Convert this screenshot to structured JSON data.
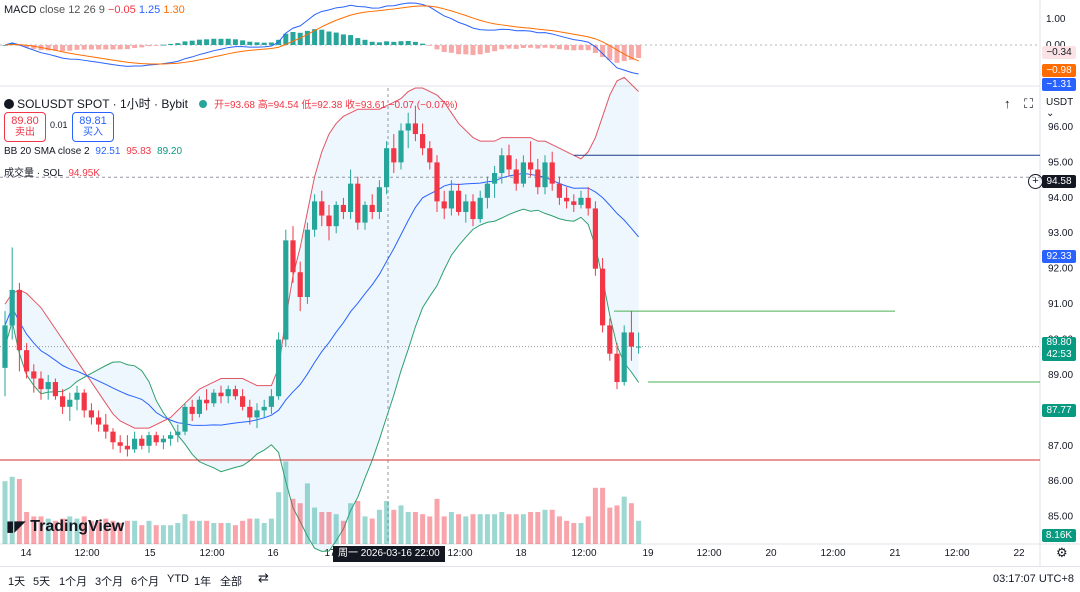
{
  "macd": {
    "label": "MACD",
    "params": "close 12 26 9",
    "v1": "−0.05",
    "v2": "1.25",
    "v3": "1.30",
    "ticks": [
      "1.00",
      "0.00"
    ]
  },
  "symbol": {
    "name": "SOLUSDT SPOT · 1小时 · Bybit",
    "ohlc": "开=93.68 高=94.54 低=92.38 收=93.61 −0.07 (−0.07%)",
    "currency": "USDT"
  },
  "order": {
    "sell_price": "89.80",
    "sell_label": "卖出",
    "spread": "0.01",
    "buy_price": "89.81",
    "buy_label": "买入"
  },
  "bb": {
    "label": "BB 20 SMA close 2",
    "v1": "92.51",
    "v2": "95.83",
    "v3": "89.20"
  },
  "volume": {
    "label": "成交量 · SOL",
    "value": "94.95K",
    "tag": "8.16K"
  },
  "price_tags": {
    "macd_a": "−0.34",
    "macd_b": "−0.98",
    "macd_c": "−1.31",
    "crosshair": "94.58",
    "bb_mid": "92.33",
    "last": "89.80",
    "countdown": "42:53",
    "bb_low": "87.77"
  },
  "x_axis": {
    "highlight": "周一 2026-03-16  22:00"
  },
  "ranges": [
    "1天",
    "5天",
    "1个月",
    "3个月",
    "6个月",
    "YTD",
    "1年",
    "全部"
  ],
  "clock": "03:17:07 UTC+8",
  "logo": "TradingView",
  "colors": {
    "up": "#26a69a",
    "down": "#f23645",
    "bb_upper": "#e25563",
    "bb_lower": "#2e9f6b",
    "bb_basis": "#2962ff",
    "macd": "#2962ff",
    "signal": "#ff6d00"
  },
  "chart_data": {
    "type": "candlestick",
    "y_ticks": [
      "96.00",
      "95.00",
      "94.00",
      "93.00",
      "92.00",
      "91.00",
      "90.00",
      "89.00",
      "88.00",
      "87.00",
      "86.00",
      "85.00"
    ],
    "x_ticks": [
      "14",
      "12:00",
      "15",
      "12:00",
      "16",
      "17",
      "12:00",
      "18",
      "12:00",
      "19",
      "12:00",
      "20",
      "12:00",
      "21",
      "12:00",
      "22"
    ],
    "ylim": [
      84.2,
      97.1
    ],
    "horizontal_lines": [
      95.2,
      94.58,
      90.8,
      88.8,
      86.6
    ],
    "candles": [
      [
        89.2,
        90.8,
        88.4,
        90.4
      ],
      [
        90.4,
        92.6,
        90,
        91.4
      ],
      [
        91.4,
        91.6,
        89.1,
        89.7
      ],
      [
        89.7,
        89.9,
        88.9,
        89.1
      ],
      [
        89.1,
        89.3,
        88.5,
        88.9
      ],
      [
        88.9,
        89.1,
        88.3,
        88.6
      ],
      [
        88.6,
        89,
        88.3,
        88.8
      ],
      [
        88.8,
        88.9,
        88.3,
        88.4
      ],
      [
        88.4,
        88.6,
        87.9,
        88.1
      ],
      [
        88.1,
        88.5,
        87.7,
        88.3
      ],
      [
        88.3,
        88.7,
        88,
        88.5
      ],
      [
        88.5,
        88.6,
        87.8,
        88
      ],
      [
        88,
        88.2,
        87.6,
        87.8
      ],
      [
        87.8,
        88,
        87.4,
        87.6
      ],
      [
        87.6,
        87.9,
        87.2,
        87.4
      ],
      [
        87.4,
        87.5,
        86.9,
        87.1
      ],
      [
        87.1,
        87.3,
        86.8,
        87
      ],
      [
        87,
        87.3,
        86.7,
        86.9
      ],
      [
        86.9,
        87.4,
        86.8,
        87.2
      ],
      [
        87.2,
        87.3,
        86.9,
        87
      ],
      [
        87,
        87.4,
        86.8,
        87.3
      ],
      [
        87.3,
        87.4,
        87,
        87.1
      ],
      [
        87.1,
        87.3,
        86.9,
        87.2
      ],
      [
        87.2,
        87.4,
        87,
        87.3
      ],
      [
        87.3,
        87.6,
        87.1,
        87.4
      ],
      [
        87.4,
        88.2,
        87.3,
        88.1
      ],
      [
        88.1,
        88.3,
        87.7,
        87.9
      ],
      [
        87.9,
        88.4,
        87.8,
        88.3
      ],
      [
        88.3,
        88.6,
        88,
        88.2
      ],
      [
        88.2,
        88.6,
        88.1,
        88.5
      ],
      [
        88.5,
        88.7,
        88.2,
        88.4
      ],
      [
        88.4,
        88.7,
        88.2,
        88.6
      ],
      [
        88.6,
        88.7,
        88.3,
        88.4
      ],
      [
        88.4,
        88.6,
        88,
        88.1
      ],
      [
        88.1,
        88.3,
        87.6,
        87.8
      ],
      [
        87.8,
        88.2,
        87.5,
        88
      ],
      [
        88,
        88.3,
        87.8,
        88.1
      ],
      [
        88.1,
        88.6,
        87.9,
        88.4
      ],
      [
        88.4,
        90.2,
        88.3,
        90
      ],
      [
        90,
        93.1,
        89.8,
        92.8
      ],
      [
        92.8,
        93.2,
        91.6,
        91.9
      ],
      [
        91.9,
        92.2,
        90.8,
        91.2
      ],
      [
        91.2,
        93.3,
        91,
        93.1
      ],
      [
        93.1,
        94.1,
        92.9,
        93.9
      ],
      [
        93.9,
        94.2,
        93.2,
        93.5
      ],
      [
        93.5,
        93.8,
        92.8,
        93.2
      ],
      [
        93.2,
        93.9,
        93,
        93.8
      ],
      [
        93.8,
        94,
        93.4,
        93.6
      ],
      [
        93.6,
        94.8,
        93.4,
        94.4
      ],
      [
        94.4,
        94.6,
        93.1,
        93.3
      ],
      [
        93.3,
        93.9,
        93.1,
        93.8
      ],
      [
        93.8,
        94.1,
        93.4,
        93.6
      ],
      [
        93.6,
        94.5,
        93.4,
        94.3
      ],
      [
        94.3,
        95.6,
        94.1,
        95.4
      ],
      [
        95.4,
        95.8,
        94.7,
        95
      ],
      [
        95,
        96.1,
        94.8,
        95.9
      ],
      [
        95.9,
        96.4,
        95.4,
        96.1
      ],
      [
        96.1,
        96.6,
        95.6,
        95.8
      ],
      [
        95.8,
        96.1,
        95.2,
        95.4
      ],
      [
        95.4,
        95.6,
        94.8,
        95
      ],
      [
        95,
        95.2,
        93.6,
        93.9
      ],
      [
        93.9,
        94.2,
        93.4,
        93.7
      ],
      [
        93.7,
        94.5,
        93.5,
        94.2
      ],
      [
        94.2,
        94.4,
        93.5,
        93.6
      ],
      [
        93.6,
        94.1,
        93.3,
        93.9
      ],
      [
        93.9,
        94.1,
        93.2,
        93.4
      ],
      [
        93.4,
        94.2,
        93.3,
        94
      ],
      [
        94,
        94.6,
        93.7,
        94.4
      ],
      [
        94.4,
        94.9,
        94,
        94.7
      ],
      [
        94.7,
        95.4,
        94.4,
        95.2
      ],
      [
        95.2,
        95.5,
        94.6,
        94.8
      ],
      [
        94.8,
        95.1,
        94.2,
        94.4
      ],
      [
        94.4,
        95.2,
        94.3,
        95
      ],
      [
        95,
        95.6,
        94.6,
        94.8
      ],
      [
        94.8,
        95.1,
        94.1,
        94.3
      ],
      [
        94.3,
        95.2,
        94.1,
        95
      ],
      [
        95,
        95.3,
        94.2,
        94.4
      ],
      [
        94.4,
        94.6,
        93.8,
        94
      ],
      [
        94,
        94.3,
        93.7,
        93.9
      ],
      [
        93.9,
        94.1,
        93.6,
        93.8
      ],
      [
        93.8,
        94.2,
        93.7,
        94
      ],
      [
        94,
        94.3,
        93.5,
        93.7
      ],
      [
        93.7,
        93.9,
        91.8,
        92
      ],
      [
        92,
        92.3,
        90.2,
        90.4
      ],
      [
        90.4,
        90.6,
        89.4,
        89.6
      ],
      [
        89.6,
        89.9,
        88.6,
        88.8
      ],
      [
        88.8,
        90.4,
        88.7,
        90.2
      ],
      [
        90.2,
        90.8,
        89.4,
        89.8
      ],
      [
        89.8,
        90.2,
        89.6,
        89.8
      ]
    ],
    "bb_upper": [
      91,
      91.3,
      91.4,
      91.3,
      91.1,
      90.9,
      90.6,
      90.3,
      90,
      89.7,
      89.4,
      89.1,
      88.8,
      88.5,
      88.2,
      87.9,
      87.7,
      87.6,
      87.5,
      87.5,
      87.5,
      87.6,
      87.7,
      87.8,
      88,
      88.2,
      88.4,
      88.6,
      88.7,
      88.8,
      88.9,
      88.9,
      88.9,
      88.9,
      88.8,
      88.7,
      88.7,
      88.7,
      89.2,
      90.6,
      91.8,
      92.6,
      93.6,
      94.6,
      95.3,
      95.8,
      96.1,
      96.3,
      96.4,
      96.5,
      96.5,
      96.5,
      96.5,
      96.6,
      96.7,
      96.8,
      97,
      97.1,
      97.1,
      97,
      96.9,
      96.7,
      96.4,
      96.1,
      95.9,
      95.7,
      95.6,
      95.6,
      95.6,
      95.7,
      95.7,
      95.7,
      95.7,
      95.7,
      95.6,
      95.6,
      95.5,
      95.4,
      95.3,
      95.2,
      95.1,
      95.3,
      95.7,
      96.3,
      96.9,
      97.3,
      97.4,
      97.2,
      97
    ]
  }
}
